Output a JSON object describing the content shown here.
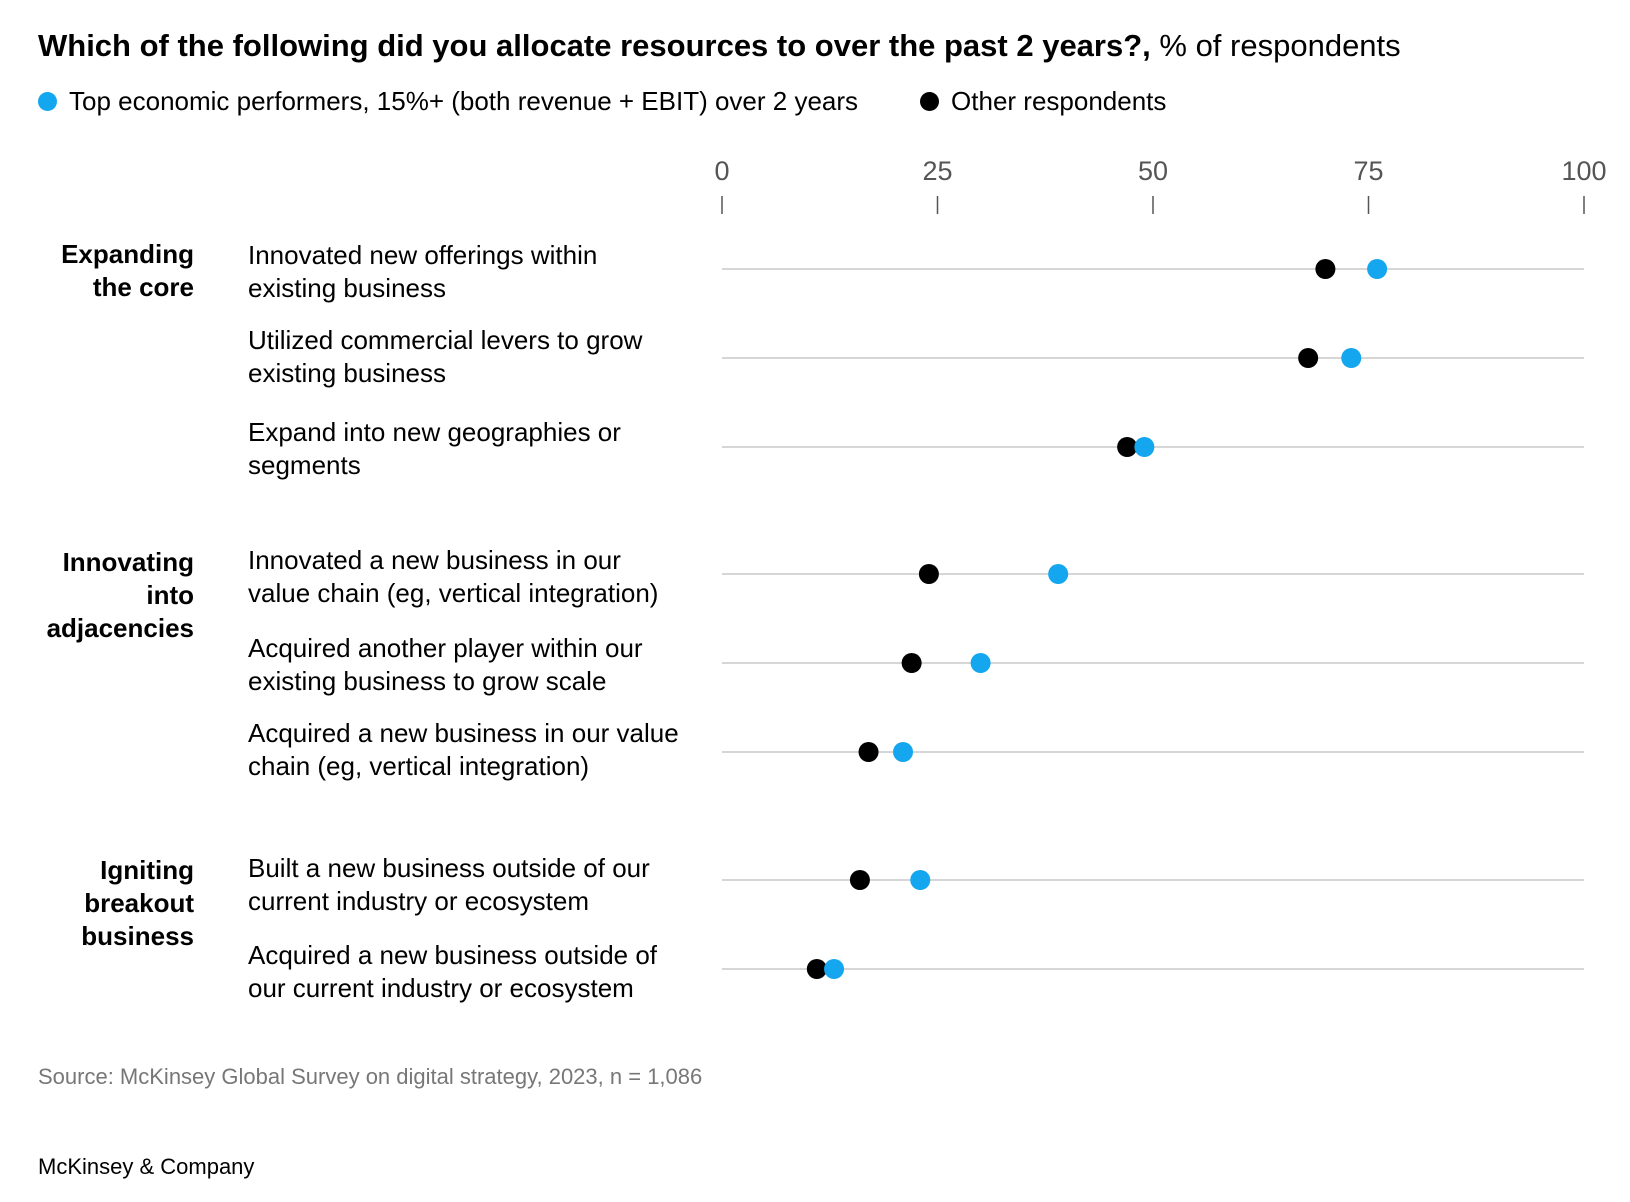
{
  "title_bold": "Which of the following did you allocate resources to over the past 2 years?,",
  "title_rest": " % of respondents",
  "legend": {
    "top": "Top economic performers, 15%+ (both revenue + EBIT) over 2 years",
    "other": "Other respondents"
  },
  "colors": {
    "top": "#14a6ee",
    "other": "#000000",
    "grid": "#c8c8c8",
    "tick": "#555555"
  },
  "groups": [
    {
      "lines": [
        "Expanding",
        "the core"
      ]
    },
    {
      "lines": [
        "Innovating",
        "into",
        "adjacencies"
      ]
    },
    {
      "lines": [
        "Igniting",
        "breakout",
        "business"
      ]
    }
  ],
  "chart_data": {
    "type": "scatter",
    "xlim": [
      0,
      100
    ],
    "ticks": [
      "0",
      "25",
      "50",
      "75",
      "100"
    ],
    "series_keys": [
      "top",
      "other"
    ],
    "rows": [
      {
        "group": 0,
        "lines": [
          "Innovated new offerings within",
          "existing business"
        ],
        "top": 76,
        "other": 70
      },
      {
        "group": 0,
        "lines": [
          "Utilized commercial levers to grow",
          "existing business"
        ],
        "top": 73,
        "other": 68
      },
      {
        "group": 0,
        "lines": [
          "Expand into new geographies or",
          "segments"
        ],
        "top": 49,
        "other": 47
      },
      {
        "group": 1,
        "lines": [
          "Innovated a new business in our",
          "value chain (eg, vertical integration)"
        ],
        "top": 39,
        "other": 24
      },
      {
        "group": 1,
        "lines": [
          "Acquired another player within our",
          "existing business to grow scale"
        ],
        "top": 30,
        "other": 22
      },
      {
        "group": 1,
        "lines": [
          "Acquired a new business in our value",
          "chain (eg, vertical integration)"
        ],
        "top": 21,
        "other": 17
      },
      {
        "group": 2,
        "lines": [
          "Built a new business outside of our",
          "current industry or ecosystem"
        ],
        "top": 23,
        "other": 16
      },
      {
        "group": 2,
        "lines": [
          "Acquired a new business outside of",
          "our current industry or ecosystem"
        ],
        "top": 13,
        "other": 11
      }
    ]
  },
  "source": "Source: McKinsey Global Survey on digital strategy, 2023, n = 1,086",
  "brand": "McKinsey & Company"
}
